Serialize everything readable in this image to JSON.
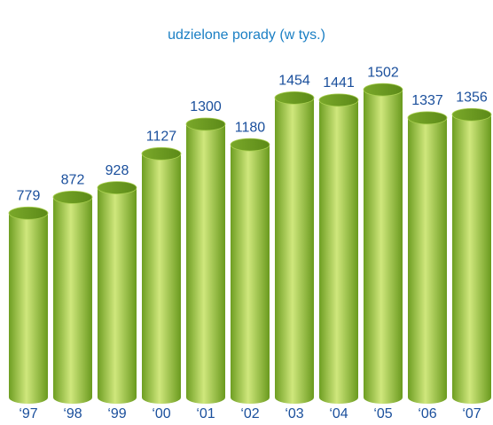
{
  "chart_data": {
    "type": "bar",
    "title": "udzielone porady (w tys.)",
    "categories": [
      "‘97",
      "‘98",
      "‘99",
      "‘00",
      "‘01",
      "‘02",
      "‘03",
      "‘04",
      "‘05",
      "‘06",
      "‘07"
    ],
    "values": [
      779,
      872,
      928,
      1127,
      1300,
      1180,
      1454,
      1441,
      1502,
      1337,
      1356
    ],
    "color": "#8cbc34",
    "ylim": [
      -300,
      1700
    ]
  }
}
